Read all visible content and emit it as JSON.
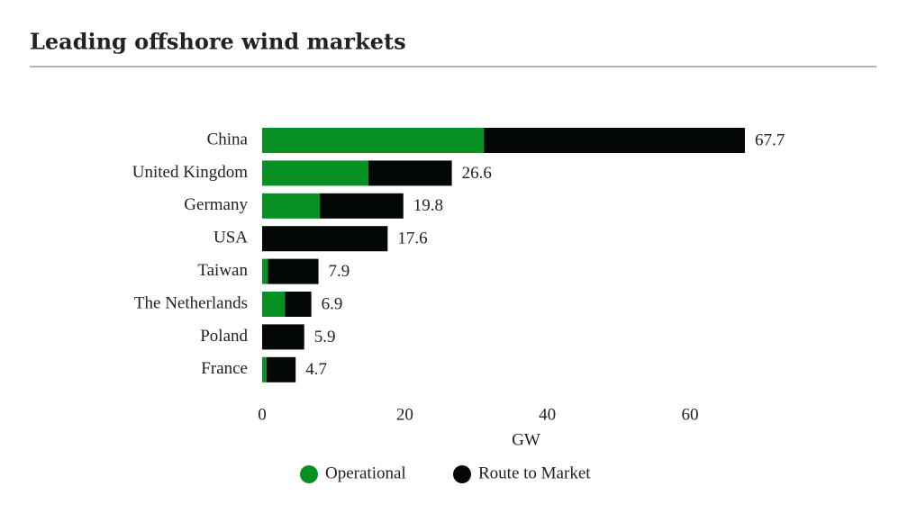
{
  "chart_data": {
    "type": "stacked-bar-horizontal",
    "title": "Leading offshore wind markets",
    "categories": [
      "China",
      "United Kingdom",
      "Germany",
      "USA",
      "Taiwan",
      "The Netherlands",
      "Poland",
      "France"
    ],
    "series": [
      {
        "name": "Operational",
        "color": "#079123",
        "values": [
          31.1,
          14.9,
          8.1,
          0,
          0.8,
          3.2,
          0,
          0.6
        ]
      },
      {
        "name": "Route to Market",
        "color": "#030804",
        "values": [
          36.6,
          11.7,
          11.7,
          17.6,
          7.1,
          3.7,
          5.9,
          4.1
        ]
      }
    ],
    "totals": [
      67.7,
      26.6,
      19.8,
      17.6,
      7.9,
      6.9,
      5.9,
      4.7
    ],
    "xlabel": "GW",
    "xlim": [
      0,
      68.9
    ],
    "xticks": [
      0,
      20,
      40,
      60
    ],
    "legend": "bottom"
  }
}
